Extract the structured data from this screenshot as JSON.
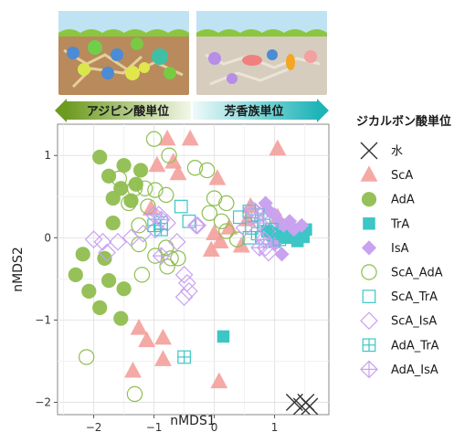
{
  "chart_data": {
    "type": "scatter",
    "xlabel": "nMDS1",
    "ylabel": "nMDS2",
    "xlim": [
      -2.6,
      1.9
    ],
    "ylim": [
      -2.15,
      1.38
    ],
    "x_ticks": [
      -2,
      -1,
      0,
      1
    ],
    "y_ticks": [
      -2,
      -1,
      0,
      1
    ],
    "grid": true,
    "legend_title": "ジカルボン酸単位",
    "legend_position": "right",
    "arrows": {
      "left_label": "アジピン酸単位",
      "right_label": "芳香族単位"
    },
    "series": [
      {
        "name": "水",
        "marker": "x",
        "color": "#333333",
        "points": [
          [
            1.33,
            -2.0
          ],
          [
            1.45,
            -2.05
          ],
          [
            1.52,
            -2.0
          ],
          [
            1.58,
            -2.05
          ]
        ]
      },
      {
        "name": "ScA",
        "marker": "triangle",
        "color": "#f4a09b",
        "points": [
          [
            -0.78,
            1.2
          ],
          [
            -0.4,
            1.2
          ],
          [
            1.05,
            1.08
          ],
          [
            -0.68,
            0.92
          ],
          [
            -0.95,
            0.88
          ],
          [
            -0.6,
            0.78
          ],
          [
            0.05,
            0.72
          ],
          [
            -1.05,
            0.35
          ],
          [
            0.55,
            0.22
          ],
          [
            0.6,
            0.38
          ],
          [
            0.0,
            0.05
          ],
          [
            0.1,
            -0.05
          ],
          [
            -0.05,
            -0.15
          ],
          [
            0.25,
            0.12
          ],
          [
            0.45,
            -0.1
          ],
          [
            1.05,
            0.25
          ],
          [
            -1.25,
            -1.1
          ],
          [
            -1.12,
            -1.25
          ],
          [
            -0.85,
            -1.22
          ],
          [
            -0.85,
            -1.48
          ],
          [
            -1.35,
            -1.62
          ],
          [
            0.08,
            -1.75
          ]
        ]
      },
      {
        "name": "AdA",
        "marker": "circle_filled",
        "color": "#8fbe4f",
        "points": [
          [
            -1.9,
            0.98
          ],
          [
            -1.75,
            0.75
          ],
          [
            -1.5,
            0.88
          ],
          [
            -1.22,
            0.82
          ],
          [
            -1.55,
            0.6
          ],
          [
            -1.3,
            0.65
          ],
          [
            -1.68,
            0.48
          ],
          [
            -1.38,
            0.45
          ],
          [
            -1.68,
            0.18
          ],
          [
            -1.82,
            -0.25
          ],
          [
            -2.18,
            -0.2
          ],
          [
            -2.3,
            -0.45
          ],
          [
            -1.75,
            -0.52
          ],
          [
            -2.08,
            -0.65
          ],
          [
            -1.5,
            -0.62
          ],
          [
            -1.9,
            -0.85
          ],
          [
            -1.55,
            -0.98
          ]
        ]
      },
      {
        "name": "TrA",
        "marker": "square_filled",
        "color": "#3cc6c6",
        "points": [
          [
            0.88,
            0.08
          ],
          [
            0.98,
            0.02
          ],
          [
            1.05,
            0.06
          ],
          [
            1.12,
            0.0
          ],
          [
            1.2,
            0.04
          ],
          [
            1.28,
            0.0
          ],
          [
            1.35,
            0.02
          ],
          [
            1.42,
            0.05
          ],
          [
            1.48,
            0.01
          ],
          [
            1.3,
            0.1
          ],
          [
            1.0,
            -0.05
          ],
          [
            1.38,
            -0.04
          ],
          [
            1.52,
            0.1
          ],
          [
            0.15,
            -1.2
          ]
        ]
      },
      {
        "name": "IsA",
        "marker": "diamond_filled",
        "color": "#c9a2f0",
        "points": [
          [
            0.85,
            0.42
          ],
          [
            0.92,
            0.32
          ],
          [
            1.0,
            0.28
          ],
          [
            1.08,
            0.18
          ],
          [
            1.15,
            0.15
          ],
          [
            1.25,
            0.2
          ],
          [
            1.32,
            0.1
          ],
          [
            1.45,
            0.15
          ],
          [
            1.0,
            -0.08
          ],
          [
            1.12,
            -0.2
          ]
        ]
      },
      {
        "name": "ScA_AdA",
        "marker": "circle_open",
        "color": "#8fbe4f",
        "points": [
          [
            -1.0,
            1.2
          ],
          [
            -0.75,
            1.0
          ],
          [
            -0.32,
            0.85
          ],
          [
            -0.12,
            0.82
          ],
          [
            -1.58,
            0.72
          ],
          [
            -1.32,
            0.6
          ],
          [
            -1.15,
            0.6
          ],
          [
            -0.98,
            0.58
          ],
          [
            -0.8,
            0.52
          ],
          [
            0.0,
            0.48
          ],
          [
            0.2,
            0.42
          ],
          [
            -1.42,
            0.42
          ],
          [
            -1.1,
            0.38
          ],
          [
            -0.08,
            0.3
          ],
          [
            0.12,
            0.2
          ],
          [
            -1.25,
            0.15
          ],
          [
            0.2,
            0.08
          ],
          [
            0.38,
            -0.02
          ],
          [
            -1.25,
            -0.08
          ],
          [
            -0.8,
            -0.12
          ],
          [
            -0.98,
            -0.22
          ],
          [
            -0.72,
            -0.25
          ],
          [
            -0.6,
            -0.25
          ],
          [
            -0.78,
            -0.35
          ],
          [
            -1.2,
            -0.45
          ],
          [
            -2.12,
            -1.45
          ],
          [
            -1.32,
            -1.9
          ]
        ]
      },
      {
        "name": "ScA_TrA",
        "marker": "square_open",
        "color": "#3cc6c6",
        "points": [
          [
            -0.55,
            0.38
          ],
          [
            -0.42,
            0.2
          ],
          [
            -0.88,
            0.18
          ],
          [
            0.42,
            0.25
          ],
          [
            0.58,
            0.32
          ],
          [
            0.72,
            0.05
          ],
          [
            0.62,
            0.12
          ],
          [
            0.8,
            0.0
          ],
          [
            0.58,
            0.0
          ]
        ]
      },
      {
        "name": "ScA_IsA",
        "marker": "diamond_open",
        "color": "#c9a2f0",
        "points": [
          [
            -0.92,
            0.28
          ],
          [
            -0.78,
            0.18
          ],
          [
            -0.98,
            0.1
          ],
          [
            -1.18,
            0.05
          ],
          [
            -1.38,
            0.0
          ],
          [
            -1.6,
            -0.05
          ],
          [
            -1.85,
            -0.05
          ],
          [
            -2.0,
            -0.02
          ],
          [
            -1.78,
            -0.18
          ],
          [
            -0.28,
            0.15
          ],
          [
            -0.62,
            -0.05
          ],
          [
            -0.5,
            -0.45
          ],
          [
            -0.45,
            -0.55
          ],
          [
            -0.42,
            -0.65
          ],
          [
            -0.5,
            -0.72
          ],
          [
            0.5,
            0.12
          ],
          [
            0.68,
            0.32
          ],
          [
            0.88,
            0.08
          ],
          [
            0.85,
            -0.12
          ],
          [
            0.9,
            -0.18
          ]
        ]
      },
      {
        "name": "AdA_TrA",
        "marker": "square_cross",
        "color": "#3cc6c6",
        "points": [
          [
            -1.0,
            0.15
          ],
          [
            -0.88,
            0.1
          ],
          [
            -0.5,
            -1.45
          ],
          [
            0.72,
            0.28
          ],
          [
            0.82,
            0.15
          ],
          [
            0.95,
            0.1
          ],
          [
            1.08,
            -0.02
          ]
        ]
      },
      {
        "name": "AdA_IsA",
        "marker": "diamond_cross",
        "color": "#c9a2f0",
        "points": [
          [
            -0.88,
            0.22
          ],
          [
            -1.0,
            0.28
          ],
          [
            -0.88,
            -0.22
          ],
          [
            -0.3,
            0.15
          ],
          [
            0.62,
            0.35
          ],
          [
            0.8,
            0.3
          ],
          [
            0.75,
            0.18
          ],
          [
            0.82,
            -0.02
          ],
          [
            0.75,
            -0.12
          ]
        ]
      }
    ]
  }
}
